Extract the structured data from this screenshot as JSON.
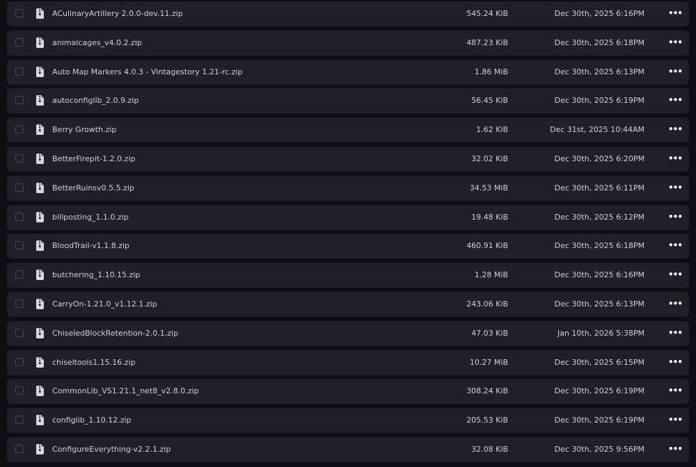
{
  "files": [
    {
      "name": "ACulinaryArtillery 2.0.0-dev.11.zip",
      "size": "545.24 KiB",
      "date": "Dec 30th, 2025 6:16PM"
    },
    {
      "name": "animalcages_v4.0.2.zip",
      "size": "487.23 KiB",
      "date": "Dec 30th, 2025 6:18PM"
    },
    {
      "name": "Auto Map Markers 4.0.3 - Vintagestory 1.21-rc.zip",
      "size": "1.86 MiB",
      "date": "Dec 30th, 2025 6:13PM"
    },
    {
      "name": "autoconfiglib_2.0.9.zip",
      "size": "56.45 KiB",
      "date": "Dec 30th, 2025 6:19PM"
    },
    {
      "name": "Berry Growth.zip",
      "size": "1.62 KiB",
      "date": "Dec 31st, 2025 10:44AM"
    },
    {
      "name": "BetterFirepit-1.2.0.zip",
      "size": "32.02 KiB",
      "date": "Dec 30th, 2025 6:20PM"
    },
    {
      "name": "BetterRuinsv0.5.5.zip",
      "size": "34.53 MiB",
      "date": "Dec 30th, 2025 6:11PM"
    },
    {
      "name": "billposting_1.1.0.zip",
      "size": "19.48 KiB",
      "date": "Dec 30th, 2025 6:12PM"
    },
    {
      "name": "BloodTrail-v1.1.8.zip",
      "size": "460.91 KiB",
      "date": "Dec 30th, 2025 6:18PM"
    },
    {
      "name": "butchering_1.10.15.zip",
      "size": "1.28 MiB",
      "date": "Dec 30th, 2025 6:16PM"
    },
    {
      "name": "CarryOn-1.21.0_v1.12.1.zip",
      "size": "243.06 KiB",
      "date": "Dec 30th, 2025 6:13PM"
    },
    {
      "name": "ChiseledBlockRetention-2.0.1.zip",
      "size": "47.03 KiB",
      "date": "Jan 10th, 2026 5:38PM"
    },
    {
      "name": "chiseltools1.15.16.zip",
      "size": "10.27 MiB",
      "date": "Dec 30th, 2025 6:15PM"
    },
    {
      "name": "CommonLib_VS1.21.1_net8_v2.8.0.zip",
      "size": "308.24 KiB",
      "date": "Dec 30th, 2025 6:19PM"
    },
    {
      "name": "configlib_1.10.12.zip",
      "size": "205.53 KiB",
      "date": "Dec 30th, 2025 6:19PM"
    },
    {
      "name": "ConfigureEverything-v2.2.1.zip",
      "size": "32.08 KiB",
      "date": "Dec 30th, 2025 9:56PM"
    }
  ],
  "more_label": "•••",
  "icons": {
    "file": "file-zip-icon",
    "more": "more-options-icon"
  }
}
